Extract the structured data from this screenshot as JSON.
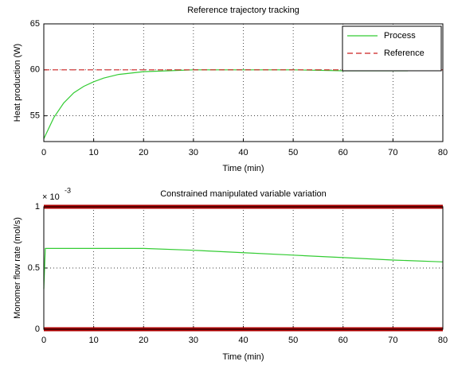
{
  "chart_data": [
    {
      "type": "line",
      "title": "Reference trajectory tracking",
      "x_label": "Time (min)",
      "y_label": "Heat production (W)",
      "x": [
        0,
        2,
        4,
        6,
        8,
        10,
        12,
        15,
        20,
        25,
        30,
        40,
        50,
        60,
        70,
        73
      ],
      "series": [
        {
          "name": "Process",
          "color": "#33cc33",
          "dash": false,
          "values": [
            52.5,
            54.8,
            56.4,
            57.5,
            58.2,
            58.7,
            59.1,
            59.5,
            59.8,
            59.9,
            60,
            60,
            60,
            59.9,
            59.9,
            59.9
          ]
        },
        {
          "name": "Reference",
          "color": "#cc2222",
          "dash": true,
          "x": [
            0,
            80
          ],
          "values": [
            60,
            60
          ]
        }
      ],
      "xlim": [
        0,
        80
      ],
      "xticks": [
        0,
        10,
        20,
        30,
        40,
        50,
        60,
        70,
        80
      ],
      "ylim": [
        52.2,
        65
      ],
      "yticks": [
        55,
        60,
        65
      ],
      "grid": true,
      "legend": "upper right"
    },
    {
      "type": "line",
      "title": "Constrained manipulated variable variation",
      "x_label": "Time (min)",
      "y_label": "Monomer flow rate (mol/s)",
      "y_multiplier": {
        "base": "× 10",
        "exponent": "-3"
      },
      "x": [
        0,
        0.3,
        10,
        20,
        30,
        40,
        50,
        60,
        70,
        80
      ],
      "series": [
        {
          "color": "#33cc33",
          "dash": false,
          "values": [
            0.33,
            0.66,
            0.66,
            0.66,
            0.645,
            0.625,
            0.605,
            0.585,
            0.565,
            0.55
          ]
        }
      ],
      "constraints": {
        "color": "#b00000",
        "values": [
          0,
          1
        ]
      },
      "xlim": [
        0,
        80
      ],
      "xticks": [
        0,
        10,
        20,
        30,
        40,
        50,
        60,
        70,
        80
      ],
      "ylim": [
        0,
        1
      ],
      "yticks": [
        0,
        0.5,
        1
      ],
      "grid": true
    }
  ]
}
